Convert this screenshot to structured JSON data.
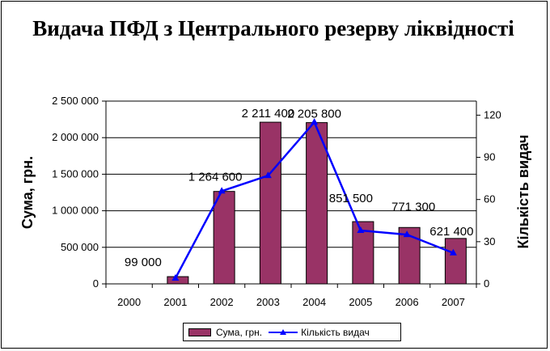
{
  "chart_data": {
    "type": "bar",
    "title": "Видача ПФД з Центрального резерву ліквідності",
    "categories": [
      "2000",
      "2001",
      "2002",
      "2003",
      "2004",
      "2005",
      "2006",
      "2007"
    ],
    "series": [
      {
        "name": "Сума, грн.",
        "type": "bar",
        "axis": "left",
        "values": [
          0,
          99000,
          1264600,
          2211400,
          2205800,
          851500,
          771300,
          621400
        ],
        "labels": [
          "",
          "99 000",
          "1 264 600",
          "2 211 400",
          "2 205 800",
          "851 500",
          "771 300",
          "621 400"
        ]
      },
      {
        "name": "Кількість видач",
        "type": "line",
        "axis": "right",
        "values": [
          null,
          4,
          66,
          77,
          115,
          38,
          35,
          22
        ]
      }
    ],
    "ylabel": "Сума, грн.",
    "y2label": "Кількість видач",
    "ylim": [
      0,
      2500000
    ],
    "y2lim": [
      0,
      130
    ],
    "yticks": [
      "0",
      "500 000",
      "1 000 000",
      "1 500 000",
      "2 000 000",
      "2 500 000"
    ],
    "y2ticks": [
      "0",
      "30",
      "60",
      "90",
      "120"
    ],
    "grid": true,
    "legend_position": "bottom",
    "colors": {
      "bar": "#993366",
      "line": "#0000ff"
    }
  }
}
